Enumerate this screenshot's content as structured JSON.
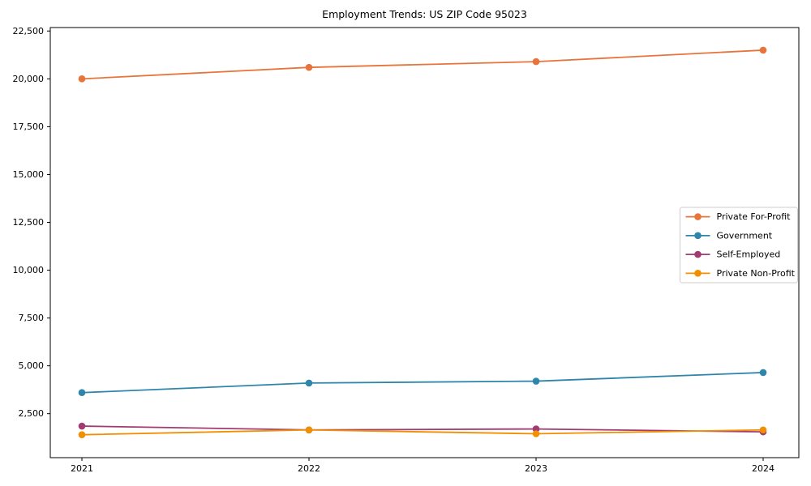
{
  "figure": {
    "background": "#ffffff"
  },
  "chart_data": {
    "type": "line",
    "title": "Employment Trends: US ZIP Code 95023",
    "categories": [
      "2021",
      "2022",
      "2023",
      "2024"
    ],
    "series": [
      {
        "name": "Private For-Profit",
        "color": "#E8743B",
        "values": [
          20000,
          20600,
          20900,
          21500
        ]
      },
      {
        "name": "Government",
        "color": "#2E86AB",
        "values": [
          3600,
          4100,
          4200,
          4650
        ]
      },
      {
        "name": "Self-Employed",
        "color": "#A23B72",
        "values": [
          1850,
          1650,
          1700,
          1550
        ]
      },
      {
        "name": "Private Non-Profit",
        "color": "#F18F01",
        "values": [
          1400,
          1650,
          1450,
          1650
        ]
      }
    ],
    "yticks": [
      {
        "v": 2500,
        "label": "2,500"
      },
      {
        "v": 5000,
        "label": "5,000"
      },
      {
        "v": 7500,
        "label": "7,500"
      },
      {
        "v": 10000,
        "label": "10,000"
      },
      {
        "v": 12500,
        "label": "12,500"
      },
      {
        "v": 15000,
        "label": "15,000"
      },
      {
        "v": 17500,
        "label": "17,500"
      },
      {
        "v": 20000,
        "label": "20,000"
      },
      {
        "v": 22500,
        "label": "22,500"
      }
    ],
    "xlabel": "",
    "ylabel": "",
    "ylim": [
      250,
      22700
    ],
    "grid": false,
    "legend_position": "center-right",
    "axis_color": "#000000",
    "text_color": "#000000",
    "legend_border_color": "#cccccc",
    "legend_background": "#ffffff"
  }
}
